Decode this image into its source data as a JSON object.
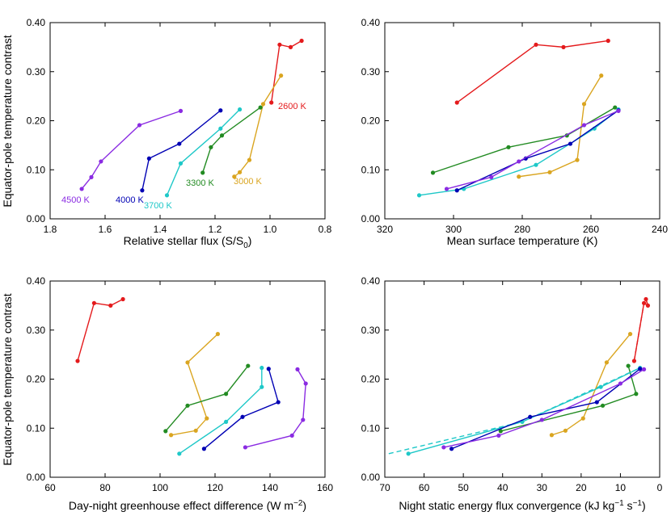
{
  "chart_data": [
    {
      "type": "line",
      "xlabel": "Relative stellar flux (S/S",
      "xlabel_sub": "0",
      "xlabel_end": ")",
      "ylabel": "Equator-pole temperature contrast",
      "xlim": [
        1.8,
        0.8
      ],
      "ylim": [
        0,
        0.4
      ],
      "xticks": [
        "1.8",
        "1.6",
        "1.4",
        "1.2",
        "1.0",
        "0.8"
      ],
      "yticks": [
        "0.00",
        "0.10",
        "0.20",
        "0.30",
        "0.40"
      ],
      "series": [
        {
          "name": "2600 K",
          "color": "#e41a1c",
          "x": [
            0.995,
            0.965,
            0.925,
            0.885
          ],
          "y": [
            0.237,
            0.355,
            0.35,
            0.363
          ]
        },
        {
          "name": "3000 K",
          "color": "#daa520",
          "x": [
            1.13,
            1.11,
            1.075,
            1.025,
            0.96
          ],
          "y": [
            0.086,
            0.095,
            0.12,
            0.234,
            0.292
          ]
        },
        {
          "name": "3300 K",
          "color": "#228b22",
          "x": [
            1.245,
            1.215,
            1.175,
            1.035
          ],
          "y": [
            0.094,
            0.146,
            0.17,
            0.227
          ]
        },
        {
          "name": "3700 K",
          "color": "#1ec8c8",
          "x": [
            1.375,
            1.325,
            1.18,
            1.11
          ],
          "y": [
            0.048,
            0.113,
            0.184,
            0.223
          ]
        },
        {
          "name": "4000 K",
          "color": "#0000b4",
          "x": [
            1.465,
            1.44,
            1.33,
            1.18
          ],
          "y": [
            0.058,
            0.123,
            0.153,
            0.221
          ]
        },
        {
          "name": "4500 K",
          "color": "#8a2be2",
          "x": [
            1.685,
            1.65,
            1.615,
            1.475,
            1.325
          ],
          "y": [
            0.061,
            0.085,
            0.117,
            0.191,
            0.22
          ]
        }
      ],
      "labels": [
        "2600 K",
        "3000 K",
        "3300 K",
        "3700 K",
        "4000 K",
        "4500 K"
      ]
    },
    {
      "type": "line",
      "xlabel": "Mean surface temperature (K)",
      "xlim": [
        320,
        240
      ],
      "ylim": [
        0,
        0.4
      ],
      "xticks": [
        "320",
        "300",
        "280",
        "260",
        "240"
      ],
      "yticks": [
        "0.00",
        "0.10",
        "0.20",
        "0.30",
        "0.40"
      ],
      "series": [
        {
          "color": "#e41a1c",
          "x": [
            299,
            276,
            268,
            255
          ],
          "y": [
            0.237,
            0.355,
            0.35,
            0.363
          ]
        },
        {
          "color": "#daa520",
          "x": [
            281,
            272,
            264,
            262,
            257
          ],
          "y": [
            0.086,
            0.095,
            0.12,
            0.234,
            0.292
          ]
        },
        {
          "color": "#228b22",
          "x": [
            306,
            284,
            267,
            253
          ],
          "y": [
            0.094,
            0.146,
            0.17,
            0.227
          ]
        },
        {
          "color": "#1ec8c8",
          "x": [
            310,
            297,
            276,
            259,
            252
          ],
          "y": [
            0.048,
            0.061,
            0.11,
            0.184,
            0.223
          ]
        },
        {
          "color": "#0000b4",
          "x": [
            299,
            279,
            266,
            252
          ],
          "y": [
            0.058,
            0.123,
            0.153,
            0.221
          ]
        },
        {
          "color": "#8a2be2",
          "x": [
            302,
            289,
            281,
            262,
            252
          ],
          "y": [
            0.061,
            0.085,
            0.117,
            0.191,
            0.22
          ]
        }
      ]
    },
    {
      "type": "line",
      "xlabel": "Day-night greenhouse effect difference (W m",
      "xlabel_sup": "−2",
      "xlabel_end": ")",
      "ylabel": "Equator-pole temperature contrast",
      "xlim": [
        60,
        160
      ],
      "ylim": [
        0,
        0.4
      ],
      "xticks": [
        "60",
        "80",
        "100",
        "120",
        "140",
        "160"
      ],
      "yticks": [
        "0.00",
        "0.10",
        "0.20",
        "0.30",
        "0.40"
      ],
      "series": [
        {
          "color": "#e41a1c",
          "x": [
            70,
            76,
            82,
            86.5
          ],
          "y": [
            0.237,
            0.355,
            0.35,
            0.363
          ]
        },
        {
          "color": "#daa520",
          "x": [
            104,
            113,
            117,
            110,
            121
          ],
          "y": [
            0.086,
            0.095,
            0.12,
            0.234,
            0.292
          ]
        },
        {
          "color": "#228b22",
          "x": [
            102,
            110,
            124,
            132
          ],
          "y": [
            0.094,
            0.146,
            0.17,
            0.227
          ]
        },
        {
          "color": "#1ec8c8",
          "x": [
            107,
            124,
            137,
            137
          ],
          "y": [
            0.048,
            0.113,
            0.184,
            0.223
          ]
        },
        {
          "color": "#0000b4",
          "x": [
            116,
            130,
            143,
            139.5
          ],
          "y": [
            0.058,
            0.123,
            0.153,
            0.221
          ]
        },
        {
          "color": "#8a2be2",
          "x": [
            131,
            148,
            152,
            153,
            150
          ],
          "y": [
            0.061,
            0.085,
            0.117,
            0.191,
            0.22
          ]
        }
      ]
    },
    {
      "type": "line",
      "xlabel": "Night static energy flux convergence (kJ kg",
      "xlabel_sup1": "−1",
      "xlabel_mid": " s",
      "xlabel_sup2": "−1",
      "xlabel_end": ")",
      "xlim": [
        70,
        0
      ],
      "ylim": [
        0,
        0.4
      ],
      "xticks": [
        "70",
        "60",
        "50",
        "40",
        "30",
        "20",
        "10",
        "0"
      ],
      "yticks": [
        "0.00",
        "0.10",
        "0.20",
        "0.30",
        "0.40"
      ],
      "series": [
        {
          "color": "#e41a1c",
          "x": [
            6.5,
            4,
            3,
            3.5
          ],
          "y": [
            0.237,
            0.355,
            0.35,
            0.363
          ]
        },
        {
          "color": "#daa520",
          "x": [
            27.5,
            24,
            19.5,
            13.5,
            7.5
          ],
          "y": [
            0.086,
            0.095,
            0.12,
            0.234,
            0.292
          ]
        },
        {
          "color": "#228b22",
          "x": [
            40.5,
            14.5,
            6,
            8
          ],
          "y": [
            0.094,
            0.146,
            0.17,
            0.227
          ]
        },
        {
          "color": "#1ec8c8",
          "x": [
            64,
            35,
            15,
            5
          ],
          "y": [
            0.048,
            0.113,
            0.184,
            0.223
          ]
        },
        {
          "color": "#0000b4",
          "x": [
            53,
            33,
            16,
            5
          ],
          "y": [
            0.058,
            0.123,
            0.153,
            0.221
          ]
        },
        {
          "color": "#8a2be2",
          "x": [
            55,
            41,
            30,
            10,
            4
          ],
          "y": [
            0.061,
            0.085,
            0.117,
            0.191,
            0.22
          ]
        }
      ],
      "dashed_series": [
        {
          "color": "#e41a1c",
          "x": [
            6.5,
            4,
            3,
            3.5
          ],
          "y": [
            0.237,
            0.355,
            0.35,
            0.363
          ]
        },
        {
          "color": "#1ec8c8",
          "x": [
            69,
            35,
            5
          ],
          "y": [
            0.048,
            0.113,
            0.223
          ]
        }
      ]
    }
  ]
}
